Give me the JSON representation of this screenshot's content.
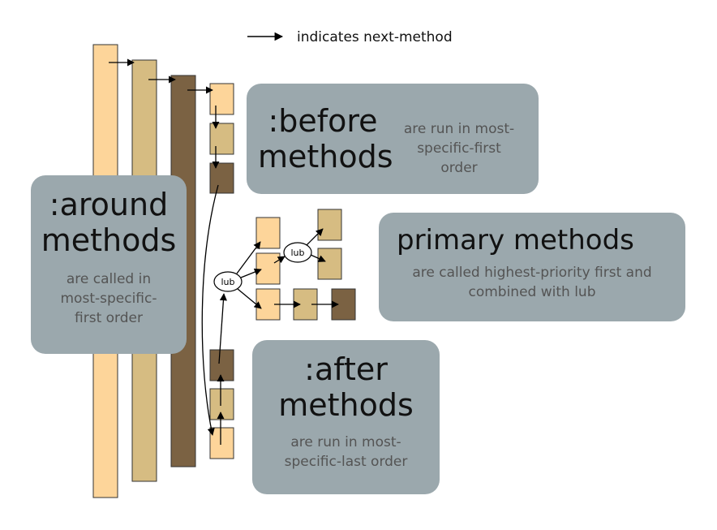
{
  "legend": {
    "text": "indicates next-method"
  },
  "boxes": {
    "before": {
      "title_1": ":before",
      "title_2": "methods",
      "desc_1": "are run in most-",
      "desc_2": "specific-first",
      "desc_3": "order"
    },
    "around": {
      "title_1": ":around",
      "title_2": "methods",
      "desc_1": "are called in",
      "desc_2": "most-specific-",
      "desc_3": "first order"
    },
    "primary": {
      "title": "primary methods",
      "desc_1": "are called highest-priority first and",
      "desc_2": "combined with lub"
    },
    "after": {
      "title_1": ":after",
      "title_2": "methods",
      "desc_1": "are run in most-",
      "desc_2": "specific-last order"
    }
  },
  "nodes": {
    "lub_label": "lub"
  },
  "colors": {
    "light": "#fdd59a",
    "medium": "#d6bc82",
    "dark": "#7b6243",
    "box_bg": "#9ba8ad"
  }
}
